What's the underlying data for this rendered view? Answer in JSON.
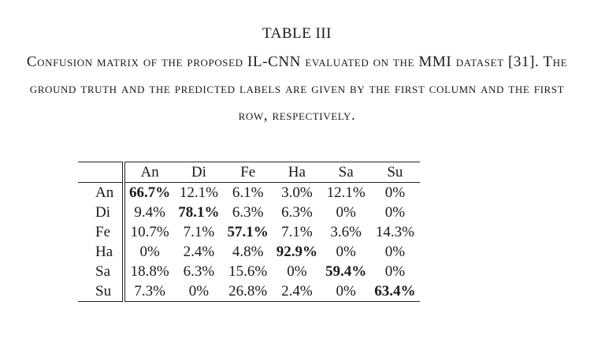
{
  "table_label": "TABLE III",
  "caption": "Confusion matrix of the proposed IL-CNN evaluated on the MMI dataset [31]. The ground truth and the predicted labels are given by the first column and the first row, respectively.",
  "chart_data": {
    "type": "table",
    "title": "Confusion matrix of the proposed IL-CNN evaluated on the MMI dataset [31]",
    "columns": [
      "An",
      "Di",
      "Fe",
      "Ha",
      "Sa",
      "Su"
    ],
    "rows": [
      {
        "label": "An",
        "cells": [
          "66.7%",
          "12.1%",
          "6.1%",
          "3.0%",
          "12.1%",
          "0%"
        ]
      },
      {
        "label": "Di",
        "cells": [
          "9.4%",
          "78.1%",
          "6.3%",
          "6.3%",
          "0%",
          "0%"
        ]
      },
      {
        "label": "Fe",
        "cells": [
          "10.7%",
          "7.1%",
          "57.1%",
          "7.1%",
          "3.6%",
          "14.3%"
        ]
      },
      {
        "label": "Ha",
        "cells": [
          "0%",
          "2.4%",
          "4.8%",
          "92.9%",
          "0%",
          "0%"
        ]
      },
      {
        "label": "Sa",
        "cells": [
          "18.8%",
          "6.3%",
          "15.6%",
          "0%",
          "59.4%",
          "0%"
        ]
      },
      {
        "label": "Su",
        "cells": [
          "7.3%",
          "0%",
          "26.8%",
          "2.4%",
          "0%",
          "63.4%"
        ]
      }
    ],
    "highlight": "diagonal-bold"
  }
}
